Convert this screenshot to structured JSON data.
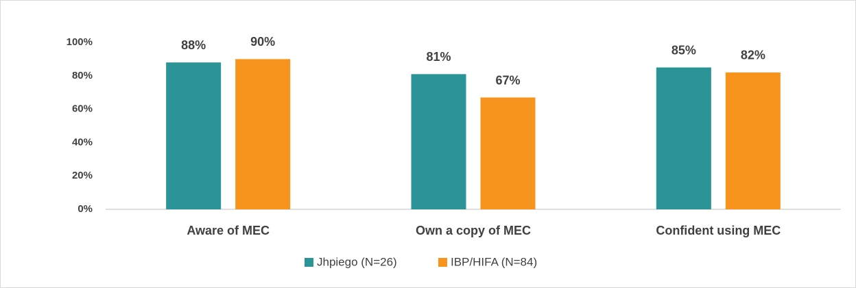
{
  "chart_data": {
    "type": "bar",
    "categories": [
      "Aware of MEC",
      "Own a copy of MEC",
      "Confident using MEC"
    ],
    "series": [
      {
        "name": "Jhpiego (N=26)",
        "color": "#2a9496",
        "values": [
          88,
          81,
          85
        ],
        "value_labels": [
          "88%",
          "81%",
          "85%"
        ]
      },
      {
        "name": "IBP/HIFA (N=84)",
        "color": "#f7941d",
        "values": [
          90,
          67,
          82
        ],
        "value_labels": [
          "90%",
          "67%",
          "82%"
        ]
      }
    ],
    "ylim": [
      0,
      100
    ],
    "yticks": [
      {
        "value": 0,
        "label": "0%"
      },
      {
        "value": 20,
        "label": "20%"
      },
      {
        "value": 40,
        "label": "40%"
      },
      {
        "value": 60,
        "label": "60%"
      },
      {
        "value": 80,
        "label": "80%"
      },
      {
        "value": 100,
        "label": "100%"
      }
    ],
    "grid": false,
    "legend": "bottom"
  }
}
